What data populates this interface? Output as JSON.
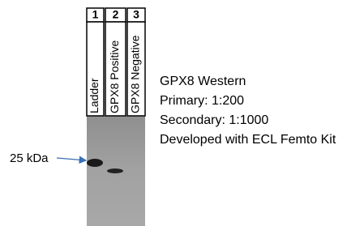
{
  "lanes": [
    {
      "number": "1",
      "label": "Ladder"
    },
    {
      "number": "2",
      "label": "GPX8 Positive"
    },
    {
      "number": "3",
      "label": "GPX8 Negative"
    }
  ],
  "marker": {
    "label": "25 kDa"
  },
  "notes": [
    "GPX8 Western",
    "Primary: 1:200",
    "Secondary: 1:1000",
    "Developed with ECL Femto Kit"
  ]
}
